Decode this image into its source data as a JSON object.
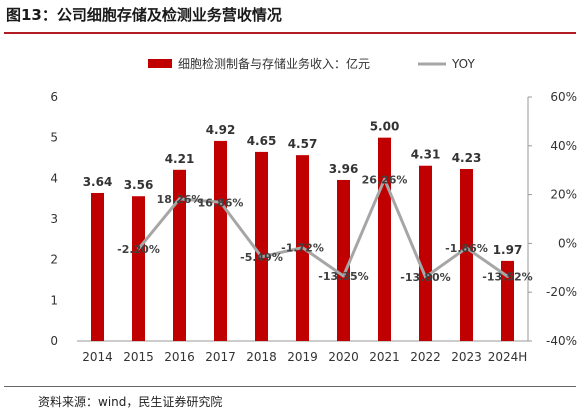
{
  "title": "图13：公司细胞存储及检测业务营收情况",
  "source": "资料来源：wind，民生证券研究院",
  "colors": {
    "bar": "#c00000",
    "line": "#a6a6a6",
    "title_rule": "#b01c22"
  },
  "chart_data": {
    "type": "bar",
    "categories": [
      "2014",
      "2015",
      "2016",
      "2017",
      "2018",
      "2019",
      "2020",
      "2021",
      "2022",
      "2023",
      "2024H"
    ],
    "series": [
      {
        "name": "细胞检测制备与存储业务收入：亿元",
        "type": "bar",
        "axis": "left",
        "values": [
          3.64,
          3.56,
          4.21,
          4.92,
          4.65,
          4.57,
          3.96,
          5.0,
          4.31,
          4.23,
          1.97
        ],
        "labels": [
          "3.64",
          "3.56",
          "4.21",
          "4.92",
          "4.65",
          "4.57",
          "3.96",
          "5.00",
          "4.31",
          "4.23",
          "1.97"
        ]
      },
      {
        "name": "YOY",
        "type": "line",
        "axis": "right",
        "values": [
          null,
          -2.2,
          18.26,
          16.86,
          -5.49,
          -1.72,
          -13.35,
          26.26,
          -13.8,
          -1.86,
          -13.52
        ],
        "labels": [
          "",
          "-2.20%",
          "18.26%",
          "16.86%",
          "-5.49%",
          "-1.72%",
          "-13.35%",
          "26.26%",
          "-13.80%",
          "-1.86%",
          "-13.52%"
        ]
      }
    ],
    "y_left": {
      "ylim": [
        0,
        6
      ],
      "ticks": [
        "0",
        "1",
        "2",
        "3",
        "4",
        "5",
        "6"
      ]
    },
    "y_right": {
      "ylim": [
        -40,
        60
      ],
      "ticks": [
        "-40%",
        "-20%",
        "0%",
        "20%",
        "40%",
        "60%"
      ]
    },
    "legend_position": "top",
    "grid": false
  }
}
